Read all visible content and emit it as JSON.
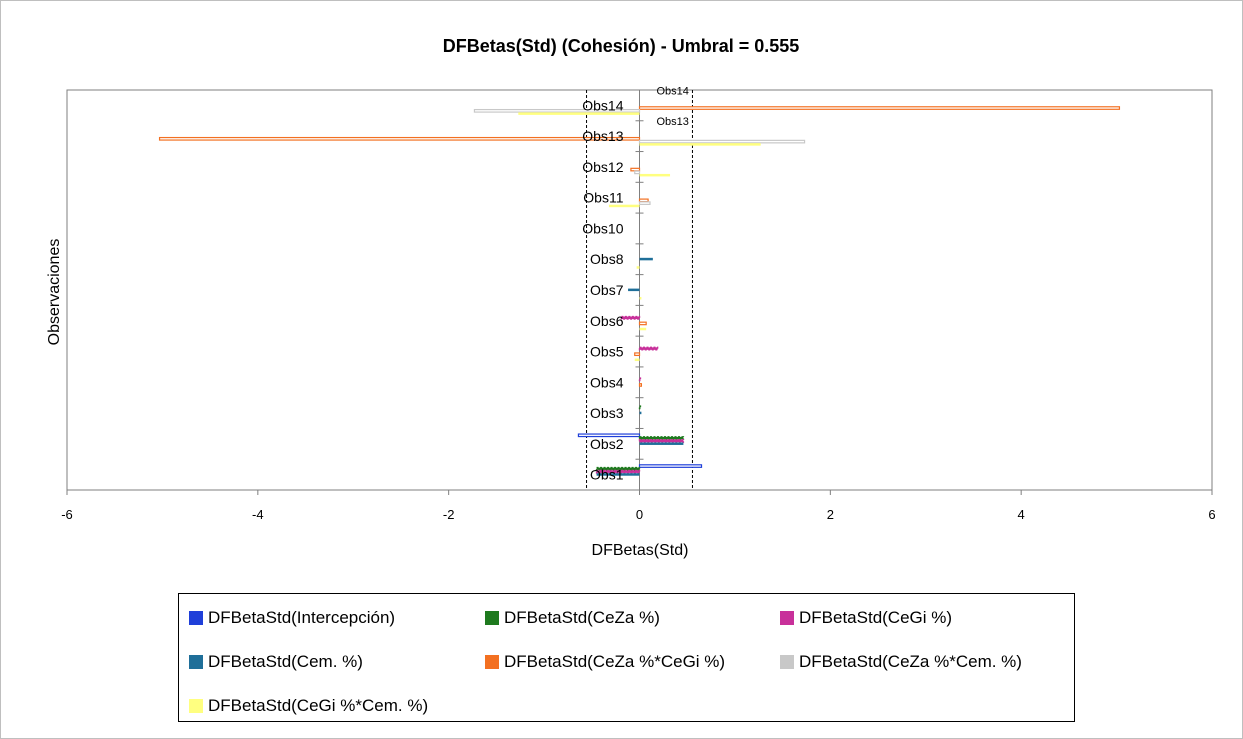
{
  "chart_data": {
    "type": "bar",
    "orientation": "horizontal",
    "title": "DFBetas(Std) (Cohesión) - Umbral = 0.555",
    "xlabel": "DFBetas(Std)",
    "ylabel": "Observaciones",
    "xlim": [
      -6,
      6
    ],
    "xticks": [
      "-6",
      "-4",
      "-2",
      "0",
      "2",
      "4",
      "6"
    ],
    "threshold": 0.555,
    "categories": [
      "Obs1",
      "Obs2",
      "Obs3",
      "Obs4",
      "Obs5",
      "Obs6",
      "Obs7",
      "Obs8",
      "Obs10",
      "Obs11",
      "Obs12",
      "Obs13",
      "Obs14"
    ],
    "annotations": [
      "Obs13",
      "Obs14"
    ],
    "grid": false,
    "legend_position": "bottom",
    "series": [
      {
        "name": "DFBetaStd(Intercepción)",
        "color": "#1f3fd9",
        "style": "outline",
        "values": [
          0.65,
          -0.64,
          0,
          0,
          0,
          0,
          0,
          0,
          0,
          0,
          0,
          0,
          0
        ]
      },
      {
        "name": "DFBetaStd(CeZa %)",
        "color": "#1e7a1e",
        "style": "dotted",
        "values": [
          -0.45,
          0.46,
          0.01,
          0,
          0,
          0,
          0,
          0,
          0,
          0,
          0,
          0,
          0
        ]
      },
      {
        "name": "DFBetaStd(CeGi %)",
        "color": "#c8309a",
        "style": "dotted",
        "values": [
          -0.45,
          0.46,
          0,
          0.01,
          0.19,
          -0.19,
          0,
          0,
          0,
          0,
          0,
          0,
          0
        ]
      },
      {
        "name": "DFBetaStd(Cem. %)",
        "color": "#1f6f99",
        "style": "solid",
        "values": [
          -0.45,
          0.46,
          0.02,
          0,
          0,
          0,
          -0.12,
          0.14,
          0,
          0,
          0,
          0,
          0
        ]
      },
      {
        "name": "DFBetaStd(CeZa %*CeGi %)",
        "color": "#f37021",
        "style": "outline",
        "values": [
          0,
          0,
          0,
          0.02,
          -0.05,
          0.07,
          0,
          0,
          0,
          0.09,
          -0.09,
          -5.03,
          5.03
        ]
      },
      {
        "name": "DFBetaStd(CeZa %*Cem. %)",
        "color": "#c8c8c8",
        "style": "outline",
        "values": [
          0,
          0,
          0,
          0,
          0,
          0,
          0,
          0,
          0,
          0.11,
          -0.05,
          1.73,
          -1.73
        ]
      },
      {
        "name": "DFBetaStd(CeGi %*Cem. %)",
        "color": "#ffff80",
        "style": "solid",
        "values": [
          0,
          0,
          0,
          0,
          -0.05,
          0.07,
          0.02,
          -0.03,
          0,
          -0.32,
          0.32,
          1.27,
          -1.27
        ]
      }
    ]
  }
}
